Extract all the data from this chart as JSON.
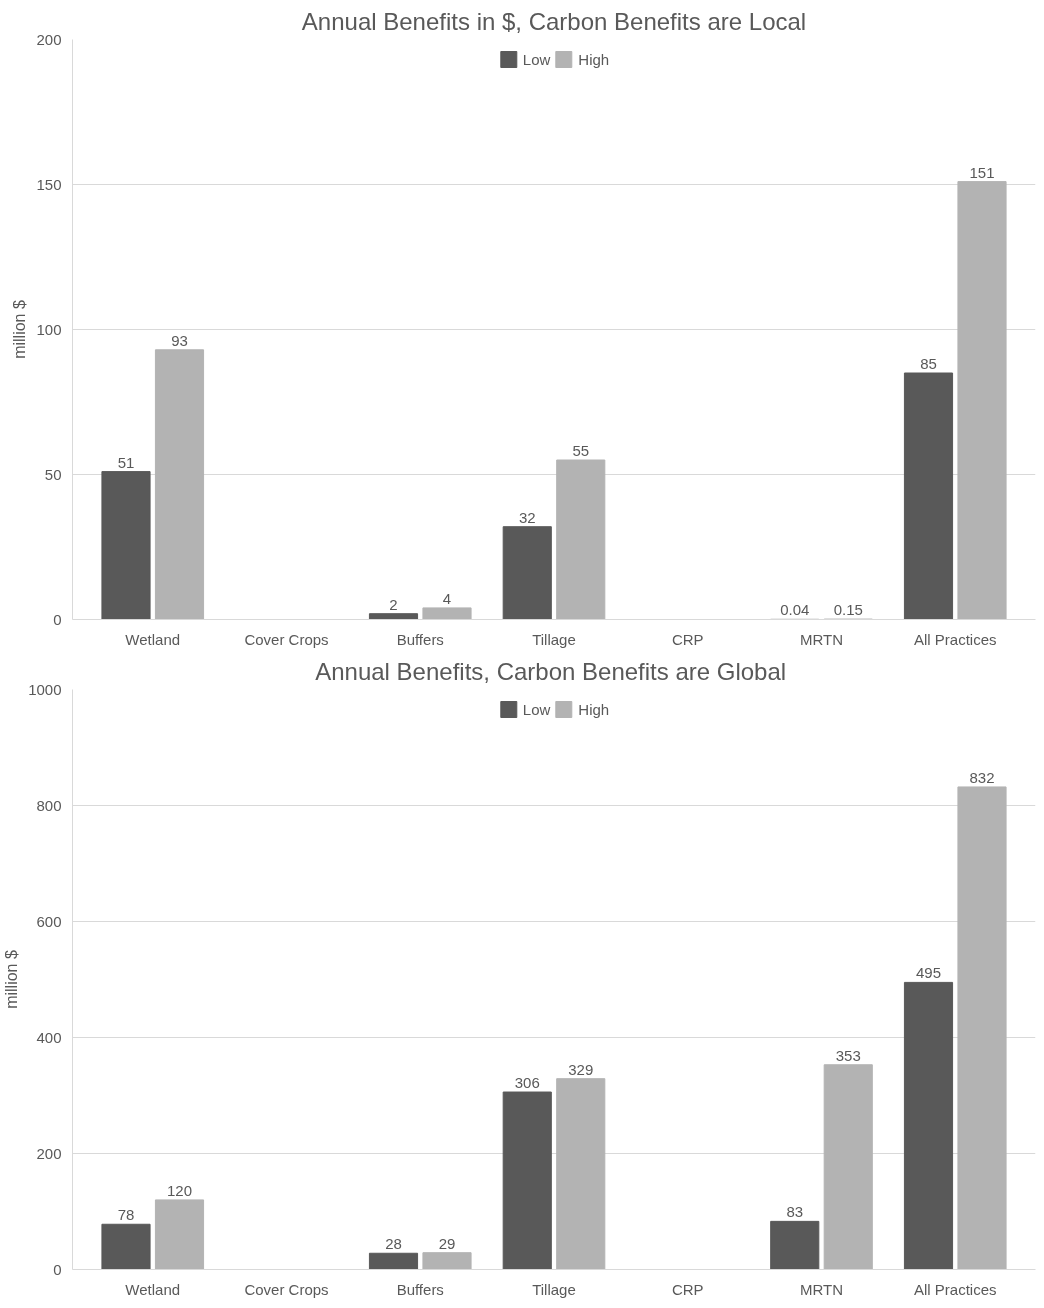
{
  "chart_data": [
    {
      "type": "bar",
      "title": "Annual Benefits in $, Carbon Benefits are Local",
      "ylabel": "million $",
      "categories": [
        "Wetland",
        "Cover Crops",
        "Buffers",
        "Tillage",
        "CRP",
        "MRTN",
        "All Practices"
      ],
      "series": [
        {
          "name": "Low",
          "color": "#595959",
          "values": [
            51,
            null,
            2,
            32,
            null,
            0.04,
            85
          ]
        },
        {
          "name": "High",
          "color": "#b3b3b3",
          "values": [
            93,
            null,
            4,
            55,
            null,
            0.15,
            151
          ]
        }
      ],
      "ylim": [
        0,
        200
      ],
      "yticks": [
        0,
        50,
        100,
        150,
        200
      ],
      "grid": "y",
      "legend": "top",
      "data_labels": true
    },
    {
      "type": "bar",
      "title": "Annual Benefits, Carbon Benefits are  Global",
      "ylabel": "million $",
      "categories": [
        "Wetland",
        "Cover Crops",
        "Buffers",
        "Tillage",
        "CRP",
        "MRTN",
        "All Practices"
      ],
      "series": [
        {
          "name": "Low",
          "color": "#595959",
          "values": [
            78,
            null,
            28,
            306,
            null,
            83,
            495
          ]
        },
        {
          "name": "High",
          "color": "#b3b3b3",
          "values": [
            120,
            null,
            29,
            329,
            null,
            353,
            832
          ]
        }
      ],
      "ylim": [
        0,
        1000
      ],
      "yticks": [
        0,
        200,
        400,
        600,
        800,
        1000
      ],
      "grid": "y",
      "legend": "top",
      "data_labels": true
    }
  ]
}
